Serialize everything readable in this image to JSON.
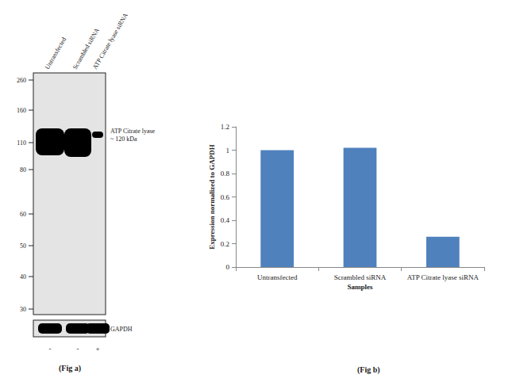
{
  "chart_data": {
    "type": "bar",
    "caption": "(Fig b)",
    "x_label": "Samples",
    "y_label": "Expression normalized to GAPDH",
    "categories": [
      "Untransfected",
      "Scrambled siRNA",
      "ATP Citrate lyase siRNA"
    ],
    "values": [
      1.0,
      1.02,
      0.26
    ],
    "color": "#4f81bd",
    "ylim": [
      0,
      1.2
    ],
    "yticks": [
      0,
      0.2,
      0.4,
      0.6,
      0.8,
      1,
      1.2
    ],
    "grid": false
  },
  "blot": {
    "caption": "(Fig a)",
    "lanes": [
      "Untransfected",
      "Scrambled siRNA",
      "ATP Citrate lyase siRNA"
    ],
    "markers": [
      260,
      160,
      110,
      80,
      60,
      50,
      40,
      30
    ],
    "band_label": [
      "ATP Citrate lyase",
      "~ 120 kDa"
    ],
    "loading_control": "GAPDH",
    "treatment": [
      "-",
      "-",
      "+"
    ]
  }
}
